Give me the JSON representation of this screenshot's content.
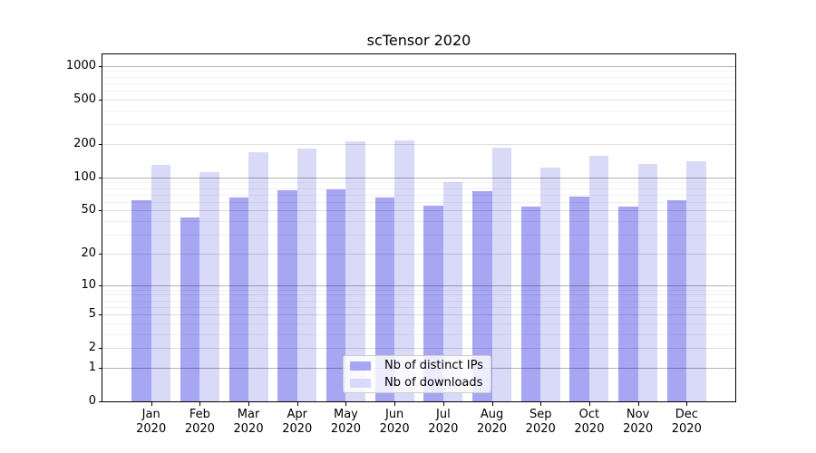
{
  "chart_data": {
    "type": "bar",
    "title": "scTensor 2020",
    "x_categories": [
      {
        "month": "Jan",
        "year": "2020"
      },
      {
        "month": "Feb",
        "year": "2020"
      },
      {
        "month": "Mar",
        "year": "2020"
      },
      {
        "month": "Apr",
        "year": "2020"
      },
      {
        "month": "May",
        "year": "2020"
      },
      {
        "month": "Jun",
        "year": "2020"
      },
      {
        "month": "Jul",
        "year": "2020"
      },
      {
        "month": "Aug",
        "year": "2020"
      },
      {
        "month": "Sep",
        "year": "2020"
      },
      {
        "month": "Oct",
        "year": "2020"
      },
      {
        "month": "Nov",
        "year": "2020"
      },
      {
        "month": "Dec",
        "year": "2020"
      }
    ],
    "series": [
      {
        "key": "distinct-ips",
        "name": "Nb of distinct IPs",
        "color": "#a6a6f2",
        "values": [
          62,
          43,
          66,
          77,
          78,
          66,
          55,
          75,
          54,
          67,
          54,
          62
        ]
      },
      {
        "key": "downloads",
        "name": "Nb of downloads",
        "color": "#d9d9f8",
        "values": [
          130,
          112,
          168,
          181,
          209,
          215,
          90,
          185,
          123,
          155,
          131,
          140
        ]
      }
    ],
    "yscale": "log1p",
    "ylim": [
      0,
      1270
    ],
    "yticks_labeled": [
      0,
      1,
      2,
      5,
      10,
      20,
      50,
      100,
      200,
      500,
      1000
    ],
    "yticks_decade": [
      1,
      10,
      100,
      1000
    ],
    "yticks_minor": [
      3,
      4,
      6,
      7,
      8,
      9,
      30,
      40,
      60,
      70,
      80,
      90,
      300,
      400,
      600,
      700,
      800,
      900
    ],
    "grid": true,
    "legend_position": "lower center",
    "colors": {
      "distinct_ips_bar": "#a6a6f2",
      "downloads_bar": "#d9d9f8",
      "grid_decade": "#b3b3b3",
      "grid_labeled": "#dfdfdf",
      "grid_minor": "#f0f0f0",
      "spine": "#000000",
      "text": "#000000",
      "legend_border": "#cccccc"
    }
  }
}
